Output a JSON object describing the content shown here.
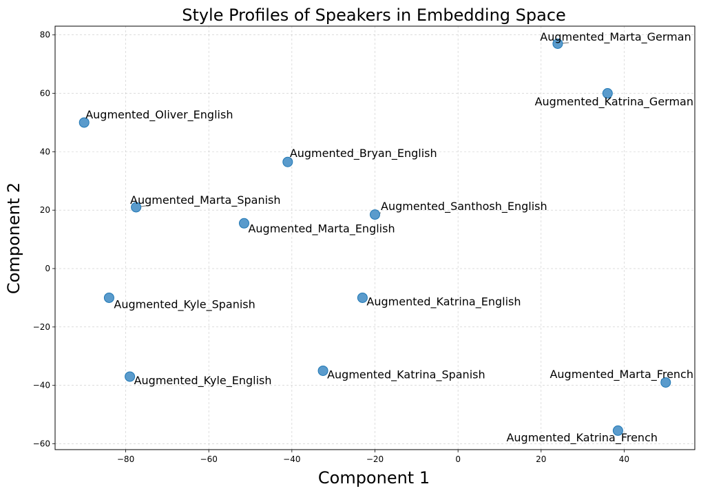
{
  "chart_data": {
    "type": "scatter",
    "title": "Style Profiles of Speakers in Embedding Space",
    "xlabel": "Component 1",
    "ylabel": "Component 2",
    "xlim": [
      -97,
      57
    ],
    "ylim": [
      -62,
      83
    ],
    "xticks": [
      -80,
      -60,
      -40,
      -20,
      0,
      20,
      40
    ],
    "yticks": [
      -60,
      -40,
      -20,
      0,
      20,
      40,
      60,
      80
    ],
    "grid": true,
    "marker_color": "#1f77b4",
    "marker_fill": "#5a9bcc",
    "points": [
      {
        "label": "Augmented_Marta_German",
        "x": 24,
        "y": 77
      },
      {
        "label": "Augmented_Katrina_German",
        "x": 36,
        "y": 60
      },
      {
        "label": "Augmented_Oliver_English",
        "x": -90,
        "y": 50
      },
      {
        "label": "Augmented_Bryan_English",
        "x": -41,
        "y": 36.5
      },
      {
        "label": "Augmented_Marta_Spanish",
        "x": -77.5,
        "y": 21
      },
      {
        "label": "Augmented_Santhosh_English",
        "x": -20,
        "y": 18.5
      },
      {
        "label": "Augmented_Marta_English",
        "x": -51.5,
        "y": 15.5
      },
      {
        "label": "Augmented_Kyle_Spanish",
        "x": -84,
        "y": -10
      },
      {
        "label": "Augmented_Katrina_English",
        "x": -23,
        "y": -10
      },
      {
        "label": "Augmented_Katrina_Spanish",
        "x": -32.5,
        "y": -35
      },
      {
        "label": "Augmented_Kyle_English",
        "x": -79,
        "y": -37
      },
      {
        "label": "Augmented_Marta_French",
        "x": 50,
        "y": -39
      },
      {
        "label": "Augmented_Katrina_French",
        "x": 38.5,
        "y": -55.5
      }
    ]
  }
}
